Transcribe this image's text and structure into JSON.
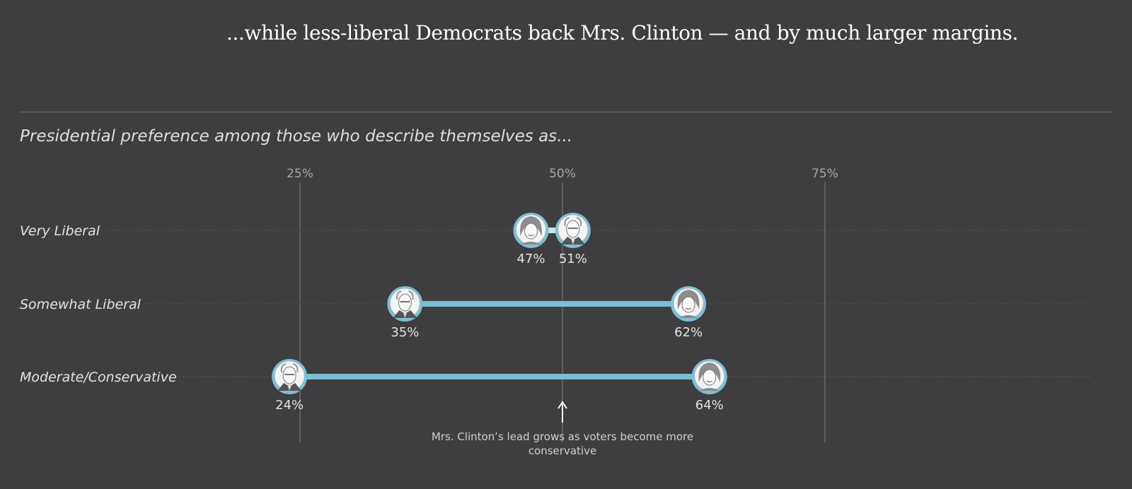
{
  "headline": "...while less-liberal Democrats back Mrs. Clinton — and by much larger margins.",
  "colors": {
    "background": "#3e3e40",
    "bar": "#7bbfd6",
    "bar_light": "#c3e4ef",
    "gridline": "#5f5f62",
    "text": "#e2e2e2"
  },
  "chart_data": {
    "type": "dumbbell",
    "title": "Presidential preference among those who describe themselves as...",
    "xlim": [
      15,
      90
    ],
    "ticks": [
      25,
      50,
      75
    ],
    "tick_labels": [
      "25%",
      "50%",
      "75%"
    ],
    "categories": [
      "Very Liberal",
      "Somewhat Liberal",
      "Moderate/Conservative"
    ],
    "series": [
      {
        "values": [
          47,
          62,
          64
        ],
        "labels": [
          "47%",
          "62%",
          "64%"
        ],
        "icon": "clinton-portrait-icon"
      },
      {
        "values": [
          51,
          35,
          24
        ],
        "labels": [
          "51%",
          "35%",
          "24%"
        ],
        "icon": "sanders-portrait-icon"
      }
    ],
    "annotation": {
      "x": 50,
      "lines": [
        "Mrs. Clinton’s lead grows as voters become more",
        "conservative"
      ],
      "icon": "arrow-up-icon"
    }
  }
}
